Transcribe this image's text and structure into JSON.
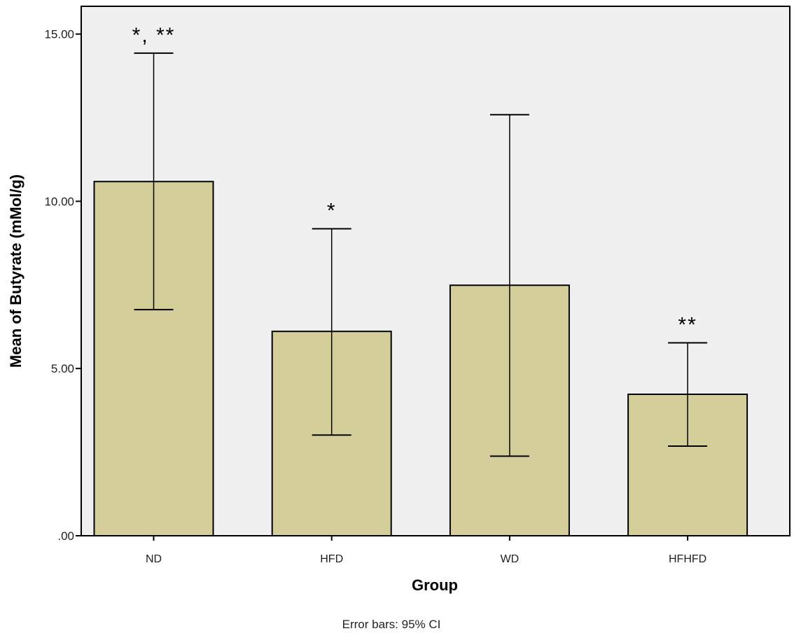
{
  "chart_data": {
    "type": "bar",
    "title": "",
    "xlabel": "Group",
    "ylabel": "Mean of Butyrate (mMol/g)",
    "footnote": "Error bars: 95% CI",
    "categories": [
      "ND",
      "HFD",
      "WD",
      "HFHFD"
    ],
    "values": [
      10.59,
      6.11,
      7.49,
      4.23
    ],
    "ci_upper": [
      14.43,
      9.18,
      12.59,
      5.77
    ],
    "ci_lower": [
      6.76,
      3.01,
      2.38,
      2.68
    ],
    "annotations": [
      "*, **",
      "*",
      "",
      "**"
    ],
    "yticks": [
      0,
      5,
      10,
      15
    ],
    "ytick_labels": [
      ".00",
      "5.00",
      "10.00",
      "15.00"
    ],
    "ylim": [
      0,
      15.83
    ],
    "grid": false,
    "colors": {
      "bar": "#d4cf9a",
      "plot_bg": "#f0f0f0",
      "axis": "#000000"
    }
  }
}
